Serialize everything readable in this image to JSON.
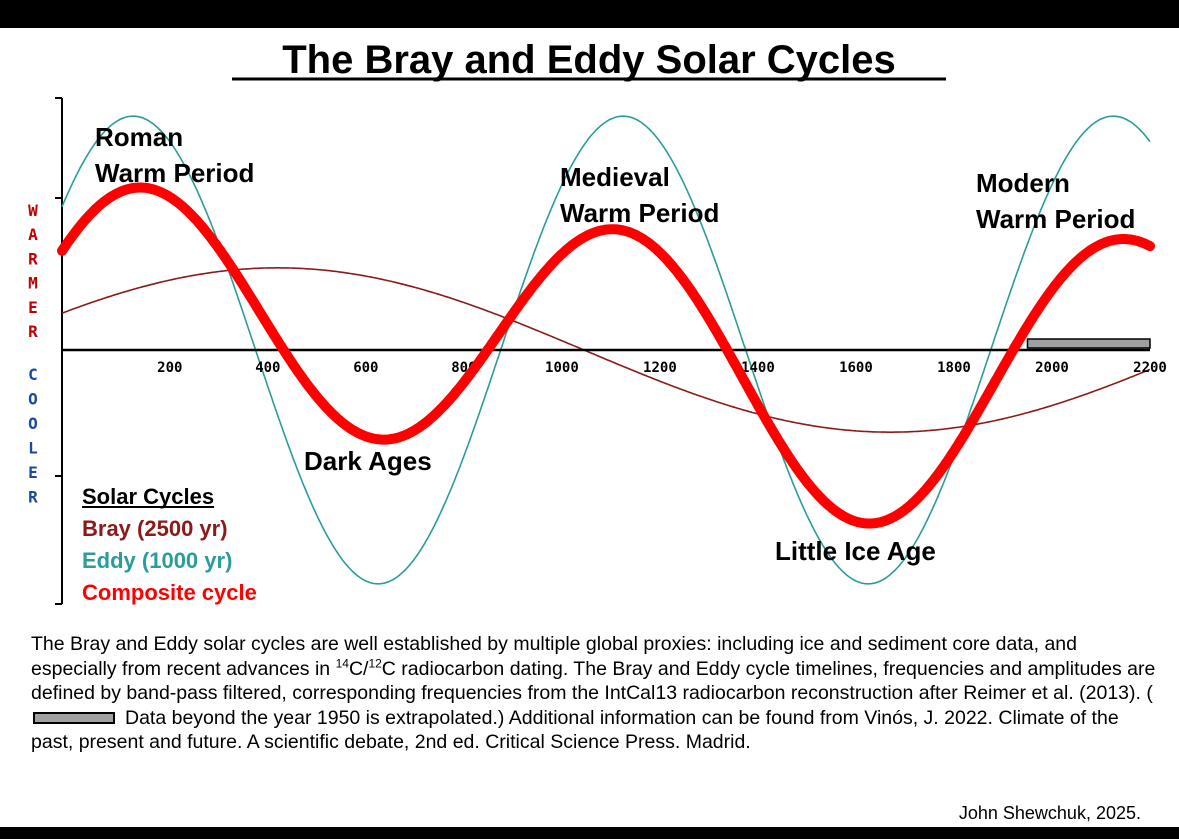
{
  "chart_data": {
    "type": "line",
    "title": "The Bray and Eddy Solar Cycles",
    "xlim": [
      -20,
      2200
    ],
    "ylim": [
      -1.6,
      1.6
    ],
    "x_ticks": [
      200,
      400,
      600,
      800,
      1000,
      1200,
      1400,
      1600,
      1800,
      2000,
      2200
    ],
    "x_tick_labels": [
      "200",
      "400",
      "600",
      "800",
      "1000",
      "1200",
      "1400",
      "1600",
      "1800",
      "2000",
      "2200"
    ],
    "y_axis_labels": {
      "upper": "WARMER",
      "lower": "COOLER"
    },
    "series": [
      {
        "name": "Bray  (2500 yr)",
        "period": 2500,
        "amplitude": 0.52,
        "peak_year": 420,
        "color": "#8b1a1a"
      },
      {
        "name": "Eddy (1000 yr)",
        "period": 1000,
        "amplitude": 1.48,
        "peak_year": 125,
        "color": "#2a9d9a"
      },
      {
        "name": "Composite cycle",
        "composition": "Bray + Eddy",
        "scale": 0.55,
        "color": "#ff0000"
      }
    ],
    "extrapolated_range": [
      1950,
      2200
    ],
    "annotations": [
      {
        "lines": [
          "Roman",
          "Warm Period"
        ]
      },
      {
        "lines": [
          "Medieval",
          "Warm Period"
        ]
      },
      {
        "lines": [
          "Modern",
          "Warm Period"
        ]
      },
      {
        "lines": [
          "Dark Ages"
        ]
      },
      {
        "lines": [
          "Little Ice Age"
        ]
      }
    ],
    "legend": {
      "title": "Solar Cycles",
      "entries": [
        "Bray  (2500 yr)",
        "Eddy (1000 yr)",
        "Composite cycle"
      ],
      "position": "bottom-left"
    }
  },
  "caption": {
    "part1": "The Bray and Eddy solar cycles are well established by multiple global proxies: including ice and sediment core data, and especially from recent advances in ",
    "iso14": "14",
    "part2": "C/",
    "iso12": "12",
    "part3": "C radiocarbon dating.  The Bray and Eddy cycle timelines, frequencies and amplitudes are defined by band-pass filtered, corresponding frequencies from the IntCal13 radiocarbon reconstruction after Reimer et al. (2013).  (",
    "part4": "Data beyond the year 1950 is extrapolated.)  Additional information can be found from Vinós, J. 2022. Climate of the past, present and future. A scientific debate, 2nd ed. Critical Science Press. Madrid."
  },
  "credit": "John Shewchuk, 2025."
}
